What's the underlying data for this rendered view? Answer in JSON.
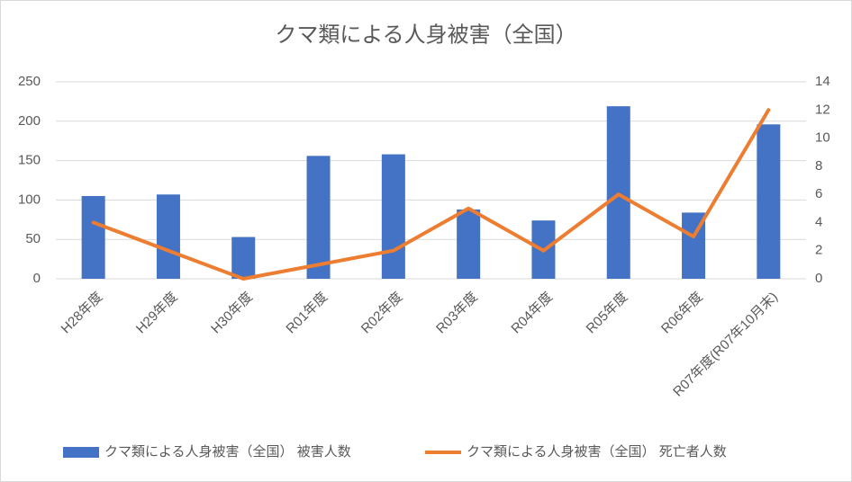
{
  "chart_data": {
    "type": "bar_line",
    "title": "クマ類による人身被害（全国）",
    "categories": [
      "H28年度",
      "H29年度",
      "H30年度",
      "R01年度",
      "R02年度",
      "R03年度",
      "R04年度",
      "R05年度",
      "R06年度",
      "R07年度(R07年10月末)"
    ],
    "series": [
      {
        "name": "クマ類による人身被害（全国） 被害人数",
        "type": "bar",
        "color": "#4472c4",
        "values": [
          105,
          107,
          53,
          156,
          158,
          88,
          74,
          219,
          84,
          196
        ]
      },
      {
        "name": "クマ類による人身被害（全国） 死亡者人数",
        "type": "line",
        "axis": "y2",
        "color": "#ed7d31",
        "values": [
          4,
          2,
          0,
          1,
          2,
          5,
          2,
          6,
          3,
          12
        ]
      }
    ],
    "ylim": [
      0,
      250
    ],
    "yticks": [
      0,
      50,
      100,
      150,
      200,
      250
    ],
    "y2lim": [
      0,
      14
    ],
    "y2ticks": [
      0,
      2,
      4,
      6,
      8,
      10,
      12,
      14
    ],
    "grid": true,
    "legend": "bottom"
  }
}
